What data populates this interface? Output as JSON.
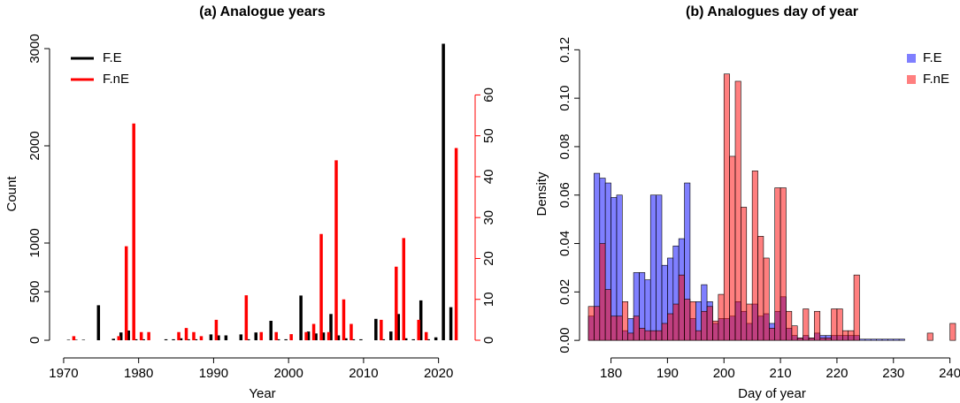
{
  "chart_data": [
    {
      "type": "bar",
      "title": "(a) Analogue years",
      "x_label": "Year",
      "y_label": "Count",
      "x": [
        1971,
        1972,
        1973,
        1975,
        1977,
        1978,
        1979,
        1980,
        1981,
        1984,
        1985,
        1986,
        1987,
        1988,
        1990,
        1991,
        1992,
        1994,
        1995,
        1996,
        1998,
        1999,
        2000,
        2002,
        2003,
        2004,
        2005,
        2006,
        2007,
        2008,
        2009,
        2010,
        2012,
        2013,
        2014,
        2015,
        2016,
        2017,
        2018,
        2019,
        2020,
        2021,
        2022
      ],
      "series": [
        {
          "name": "F.E",
          "color": "#000000",
          "values": [
            5,
            5,
            5,
            360,
            15,
            80,
            100,
            10,
            10,
            10,
            10,
            20,
            10,
            10,
            60,
            50,
            50,
            60,
            10,
            80,
            200,
            10,
            10,
            460,
            90,
            70,
            80,
            270,
            50,
            20,
            10,
            10,
            220,
            10,
            90,
            270,
            20,
            10,
            410,
            10,
            30,
            3050,
            340
          ]
        },
        {
          "name": "F.nE",
          "color": "#ff0000",
          "axis": "y2",
          "values": [
            1,
            0,
            0,
            0,
            1,
            23,
            53,
            2,
            2,
            0,
            2,
            3,
            2,
            1,
            5,
            0,
            0,
            11,
            0,
            2,
            2,
            0,
            1.5,
            2,
            4,
            26,
            2,
            44,
            10,
            4,
            0,
            0,
            5,
            0,
            18,
            25,
            0,
            5,
            2,
            0,
            0,
            0,
            47
          ]
        }
      ],
      "xlim": [
        1969.3,
        2023.7
      ],
      "xticks": [
        1970,
        1980,
        1990,
        2000,
        2010,
        2020
      ],
      "ylim": [
        -91,
        3100
      ],
      "yticks": [
        0,
        500,
        1000,
        2000,
        3000
      ],
      "y2lim": [
        -2.16,
        73.7
      ],
      "y2ticks": [
        0,
        10,
        20,
        30,
        40,
        50,
        60
      ],
      "legend": "top-left"
    },
    {
      "type": "histogram",
      "title": "(b) Analogues day of year",
      "x_label": "Day of year",
      "y_label": "Density",
      "bins": [
        176,
        177,
        178,
        179,
        180,
        181,
        182,
        183,
        184,
        185,
        186,
        187,
        188,
        189,
        190,
        191,
        192,
        193,
        194,
        195,
        196,
        197,
        198,
        199,
        200,
        201,
        202,
        203,
        204,
        205,
        206,
        207,
        208,
        209,
        210,
        211,
        212,
        213,
        214,
        215,
        216,
        217,
        218,
        219,
        220,
        221,
        222,
        223,
        224,
        225,
        226,
        227,
        228,
        229,
        230,
        231,
        232,
        233,
        234,
        235,
        236,
        237,
        238,
        239,
        240,
        241
      ],
      "series": [
        {
          "name": "F.E",
          "color": "rgba(0,0,255,0.5)",
          "values": [
            0.01,
            0.069,
            0.067,
            0.065,
            0.059,
            0.06,
            0.004,
            0.009,
            0.028,
            0.028,
            0.025,
            0.06,
            0.06,
            0.031,
            0.034,
            0.039,
            0.042,
            0.065,
            0.009,
            0.016,
            0.023,
            0.016,
            0.007,
            0.009,
            0.009,
            0.01,
            0.016,
            0.012,
            0.007,
            0.015,
            0.01,
            0.011,
            0.007,
            0.012,
            0.018,
            0.005,
            0.002,
            0.001,
            0.002,
            0.001,
            0.003,
            0.002,
            0.002,
            0.002,
            0.002,
            0.002,
            0.002,
            0.002,
            0.0005,
            0.0005,
            0.0005,
            0.0005,
            0.0005,
            0.0005,
            0.0005,
            0.0005,
            0,
            0,
            0,
            0,
            0,
            0,
            0,
            0,
            0
          ]
        },
        {
          "name": "F.nE",
          "color": "rgba(255,0,0,0.5)",
          "values": [
            0.014,
            0.014,
            0.04,
            0.021,
            0.01,
            0.01,
            0.016,
            0.003,
            0.01,
            0.005,
            0.004,
            0.004,
            0.004,
            0.007,
            0.011,
            0.015,
            0.027,
            0.017,
            0.016,
            0.004,
            0.012,
            0.014,
            0.008,
            0.019,
            0.11,
            0.076,
            0.107,
            0.055,
            0.015,
            0.07,
            0.043,
            0.034,
            0.005,
            0.063,
            0.063,
            0.012,
            0.006,
            0.001,
            0.013,
            0.001,
            0.012,
            0.001,
            0.001,
            0.013,
            0.013,
            0.004,
            0.004,
            0.027,
            0,
            0,
            0,
            0,
            0,
            0,
            0,
            0,
            0,
            0,
            0,
            0,
            0.003,
            0,
            0,
            0,
            0.007
          ]
        }
      ],
      "xlim": [
        176,
        241
      ],
      "xticks": [
        180,
        190,
        200,
        210,
        220,
        230,
        240
      ],
      "ylim": [
        -0.0036,
        0.1245
      ],
      "yticks": [
        {
          "value": 0,
          "label": "0.00"
        },
        0.02,
        0.04,
        0.06,
        0.08,
        {
          "value": 0.1,
          "label": "0.10"
        },
        0.12
      ],
      "legend": "top-right"
    }
  ]
}
